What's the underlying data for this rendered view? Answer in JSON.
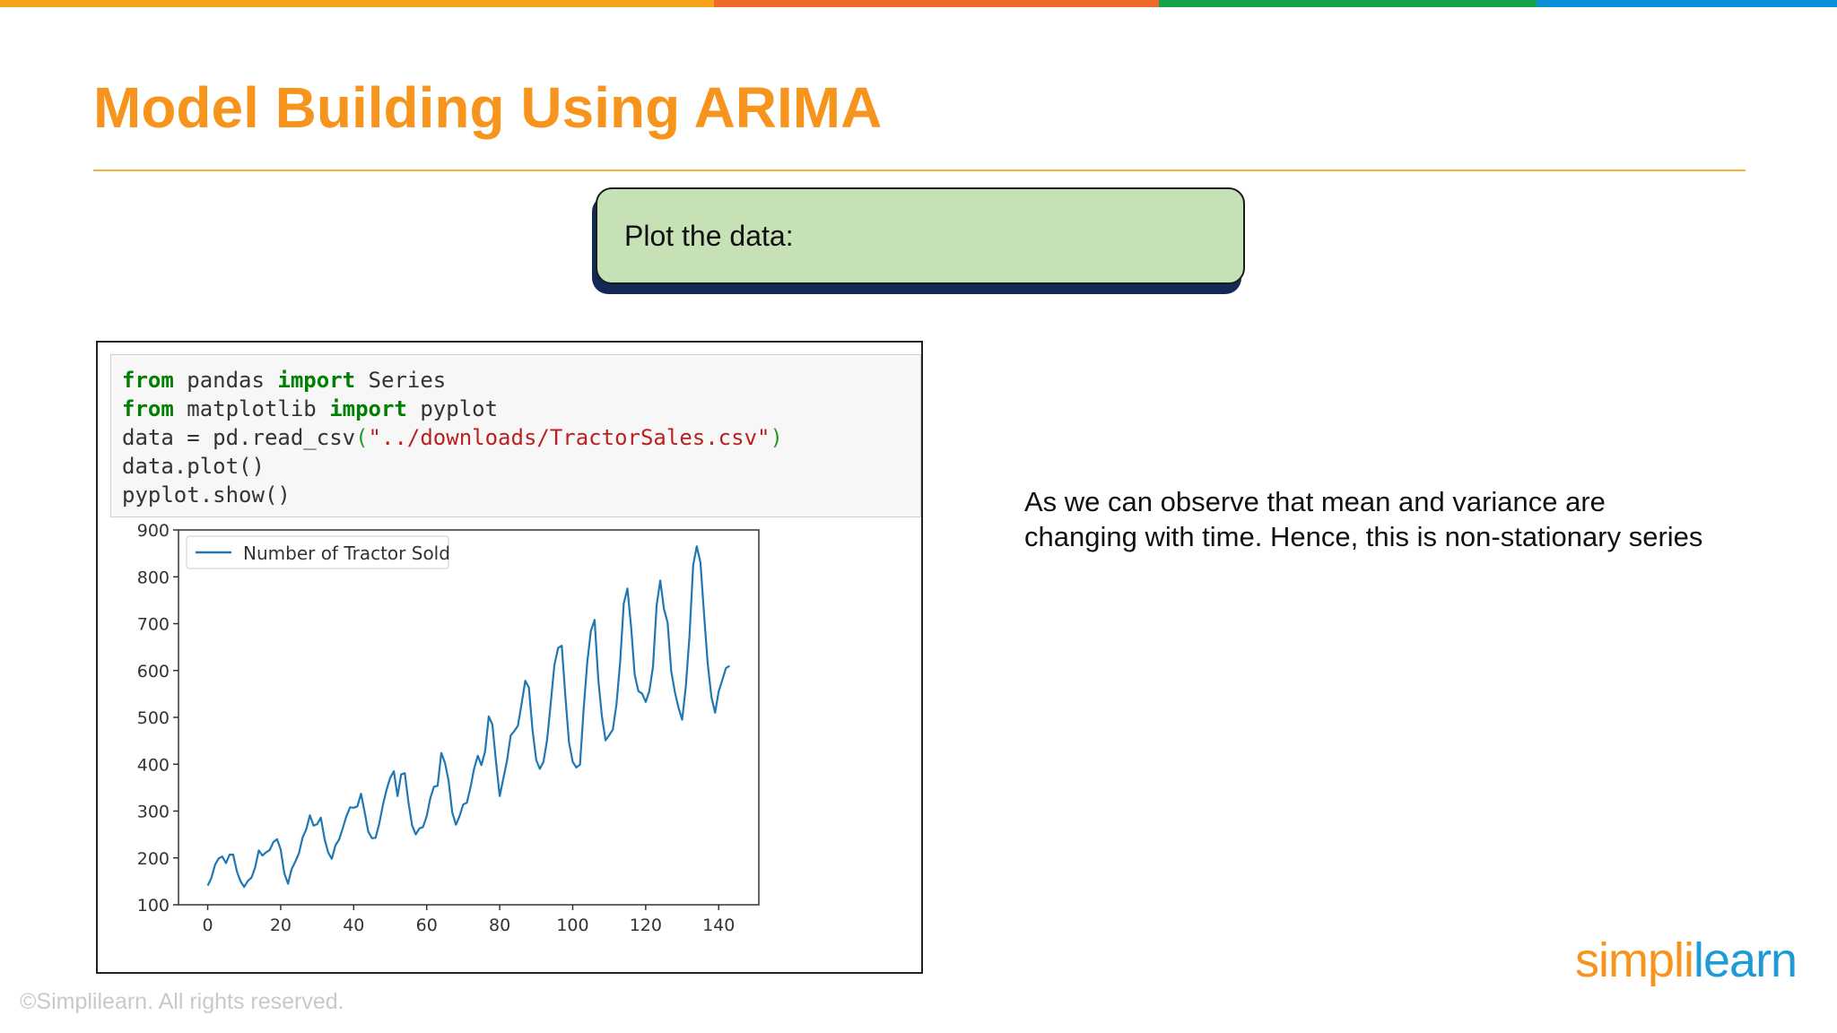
{
  "colors": {
    "topbar": [
      "#f7a21b",
      "#ee6a2a",
      "#16a34a",
      "#0b8fd6"
    ],
    "title": "#f7941d",
    "callout_bg": "#c7e1b6",
    "callout_shadow": "#132a57",
    "series": "#1f77b4"
  },
  "slide": {
    "title": "Model Building Using ARIMA",
    "callout": "Plot the data:",
    "note": "As we can observe that mean and variance are changing with time. Hence, this is non-stationary series",
    "copyright": "©Simplilearn. All rights reserved.",
    "logo": {
      "part1": "simpl",
      "part2": "i",
      "part3": "learn"
    }
  },
  "code": {
    "line1": {
      "kw1": "from",
      "t1": " pandas ",
      "kw2": "import",
      "t2": " Series"
    },
    "line2": {
      "kw1": "from",
      "t1": " matplotlib ",
      "kw2": "import",
      "t2": " pyplot"
    },
    "line3": {
      "t1": "data = pd.read_csv",
      "p1": "(",
      "s": "\"../downloads/TractorSales.csv\"",
      "p2": ")"
    },
    "line4": "data.plot()",
    "line5": "pyplot.show()"
  },
  "chart_data": {
    "type": "line",
    "title": "",
    "xlabel": "",
    "ylabel": "",
    "xlim": [
      -8,
      151
    ],
    "ylim": [
      100,
      900
    ],
    "grid": false,
    "legend_position": "top-left",
    "xticks": [
      0,
      20,
      40,
      60,
      80,
      100,
      120,
      140
    ],
    "yticks": [
      100,
      200,
      300,
      400,
      500,
      600,
      700,
      800,
      900
    ],
    "series": [
      {
        "name": "Number of Tractor Sold",
        "x": [
          0,
          1,
          2,
          3,
          4,
          5,
          6,
          7,
          8,
          9,
          10,
          11,
          12,
          13,
          14,
          15,
          16,
          17,
          18,
          19,
          20,
          21,
          22,
          23,
          24,
          25,
          26,
          27,
          28,
          29,
          30,
          31,
          32,
          33,
          34,
          35,
          36,
          37,
          38,
          39,
          40,
          41,
          42,
          43,
          44,
          45,
          46,
          47,
          48,
          49,
          50,
          51,
          52,
          53,
          54,
          55,
          56,
          57,
          58,
          59,
          60,
          61,
          62,
          63,
          64,
          65,
          66,
          67,
          68,
          69,
          70,
          71,
          72,
          73,
          74,
          75,
          76,
          77,
          78,
          79,
          80,
          81,
          82,
          83,
          84,
          85,
          86,
          87,
          88,
          89,
          90,
          91,
          92,
          93,
          94,
          95,
          96,
          97,
          98,
          99,
          100,
          101,
          102,
          103,
          104,
          105,
          106,
          107,
          108,
          109,
          110,
          111,
          112,
          113,
          114,
          115,
          116,
          117,
          118,
          119,
          120,
          121,
          122,
          123,
          124,
          125,
          126,
          127,
          128,
          129,
          130,
          131,
          132,
          133,
          134,
          135,
          136,
          137,
          138,
          139,
          140,
          141,
          142,
          143
        ],
        "values": [
          141,
          157,
          185,
          199,
          203,
          189,
          207,
          207,
          171,
          150,
          138,
          151,
          158,
          180,
          216,
          205,
          212,
          217,
          234,
          240,
          218,
          167,
          145,
          176,
          192,
          210,
          244,
          261,
          291,
          269,
          272,
          286,
          241,
          212,
          198,
          227,
          239,
          263,
          289,
          308,
          307,
          310,
          337,
          298,
          256,
          242,
          243,
          273,
          313,
          345,
          371,
          385,
          332,
          378,
          381,
          318,
          270,
          250,
          263,
          266,
          289,
          328,
          352,
          354,
          424,
          403,
          365,
          297,
          271,
          289,
          314,
          318,
          350,
          391,
          418,
          398,
          427,
          502,
          485,
          405,
          332,
          370,
          407,
          461,
          471,
          482,
          529,
          578,
          564,
          473,
          409,
          390,
          405,
          453,
          532,
          612,
          648,
          653,
          545,
          446,
          405,
          393,
          399,
          518,
          617,
          685,
          708,
          581,
          503,
          451,
          462,
          474,
          528,
          618,
          743,
          775,
          693,
          591,
          556,
          551,
          533,
          556,
          608,
          740,
          792,
          732,
          702,
          599,
          554,
          520,
          495,
          566,
          674,
          825,
          865,
          831,
          718,
          615,
          544,
          510,
          555,
          580,
          605,
          610
        ]
      }
    ]
  }
}
